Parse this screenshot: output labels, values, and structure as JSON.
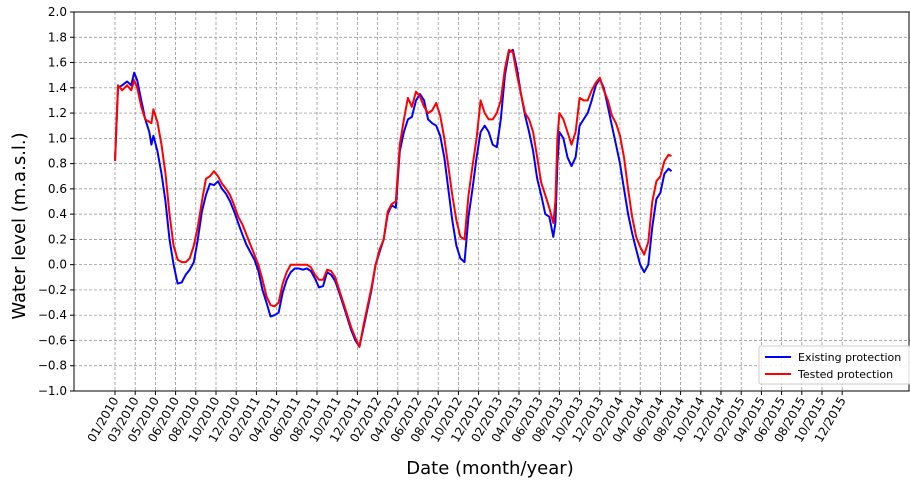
{
  "chart_data": {
    "type": "line",
    "title": "",
    "xlabel": "Date (month/year)",
    "ylabel": "Water level (m.a.s.l.)",
    "ylim": [
      -1.0,
      2.0
    ],
    "y_ticks": [
      "−1.0",
      "−0.8",
      "−0.6",
      "−0.4",
      "−0.2",
      "0.0",
      "0.2",
      "0.4",
      "0.6",
      "0.8",
      "1.0",
      "1.2",
      "1.4",
      "1.6",
      "1.8",
      "2.0"
    ],
    "x_ticks": [
      "01/2010",
      "03/2010",
      "05/2010",
      "06/2010",
      "08/2010",
      "10/2010",
      "12/2010",
      "02/2011",
      "04/2011",
      "06/2011",
      "08/2011",
      "10/2011",
      "12/2011",
      "02/2012",
      "04/2012",
      "06/2012",
      "08/2012",
      "10/2012",
      "12/2012",
      "02/2013",
      "04/2013",
      "06/2013",
      "08/2013",
      "10/2013",
      "12/2013",
      "02/2014",
      "04/2014",
      "06/2014",
      "08/2014",
      "10/2014",
      "12/2014",
      "02/2015",
      "04/2015",
      "06/2015",
      "08/2015",
      "10/2015",
      "12/2015"
    ],
    "grid": true,
    "legend_position": "bottom-right",
    "series": [
      {
        "name": "Existing protection",
        "color": "#0000ff",
        "points": [
          [
            0.0,
            0.82
          ],
          [
            0.15,
            1.4
          ],
          [
            0.35,
            1.42
          ],
          [
            0.6,
            1.45
          ],
          [
            0.8,
            1.42
          ],
          [
            0.95,
            1.52
          ],
          [
            1.1,
            1.46
          ],
          [
            1.3,
            1.3
          ],
          [
            1.5,
            1.15
          ],
          [
            1.7,
            1.05
          ],
          [
            1.8,
            0.95
          ],
          [
            1.9,
            1.02
          ],
          [
            2.1,
            0.9
          ],
          [
            2.3,
            0.72
          ],
          [
            2.5,
            0.5
          ],
          [
            2.7,
            0.2
          ],
          [
            2.9,
            0.0
          ],
          [
            3.1,
            -0.15
          ],
          [
            3.3,
            -0.14
          ],
          [
            3.5,
            -0.08
          ],
          [
            3.7,
            -0.04
          ],
          [
            3.9,
            0.02
          ],
          [
            4.1,
            0.2
          ],
          [
            4.3,
            0.42
          ],
          [
            4.5,
            0.55
          ],
          [
            4.7,
            0.64
          ],
          [
            4.9,
            0.63
          ],
          [
            5.1,
            0.66
          ],
          [
            5.3,
            0.6
          ],
          [
            5.5,
            0.56
          ],
          [
            5.7,
            0.5
          ],
          [
            5.9,
            0.42
          ],
          [
            6.1,
            0.33
          ],
          [
            6.3,
            0.24
          ],
          [
            6.5,
            0.16
          ],
          [
            6.7,
            0.1
          ],
          [
            6.9,
            0.04
          ],
          [
            7.1,
            -0.05
          ],
          [
            7.3,
            -0.2
          ],
          [
            7.5,
            -0.3
          ],
          [
            7.7,
            -0.41
          ],
          [
            7.9,
            -0.4
          ],
          [
            8.1,
            -0.38
          ],
          [
            8.3,
            -0.22
          ],
          [
            8.5,
            -0.12
          ],
          [
            8.7,
            -0.06
          ],
          [
            8.9,
            -0.03
          ],
          [
            9.1,
            -0.03
          ],
          [
            9.3,
            -0.04
          ],
          [
            9.5,
            -0.03
          ],
          [
            9.7,
            -0.05
          ],
          [
            9.9,
            -0.11
          ],
          [
            10.1,
            -0.18
          ],
          [
            10.3,
            -0.17
          ],
          [
            10.5,
            -0.06
          ],
          [
            10.7,
            -0.08
          ],
          [
            10.9,
            -0.13
          ],
          [
            11.1,
            -0.22
          ],
          [
            11.3,
            -0.32
          ],
          [
            11.5,
            -0.42
          ],
          [
            11.7,
            -0.52
          ],
          [
            11.9,
            -0.6
          ],
          [
            12.1,
            -0.65
          ],
          [
            12.3,
            -0.5
          ],
          [
            12.5,
            -0.35
          ],
          [
            12.7,
            -0.2
          ],
          [
            12.9,
            0.0
          ],
          [
            13.1,
            0.1
          ],
          [
            13.3,
            0.2
          ],
          [
            13.5,
            0.4
          ],
          [
            13.7,
            0.47
          ],
          [
            13.9,
            0.45
          ],
          [
            14.1,
            0.9
          ],
          [
            14.3,
            1.05
          ],
          [
            14.5,
            1.15
          ],
          [
            14.7,
            1.17
          ],
          [
            14.9,
            1.3
          ],
          [
            15.1,
            1.35
          ],
          [
            15.3,
            1.3
          ],
          [
            15.5,
            1.15
          ],
          [
            15.7,
            1.12
          ],
          [
            15.9,
            1.1
          ],
          [
            16.1,
            1.02
          ],
          [
            16.3,
            0.85
          ],
          [
            16.5,
            0.6
          ],
          [
            16.7,
            0.35
          ],
          [
            16.9,
            0.15
          ],
          [
            17.1,
            0.05
          ],
          [
            17.3,
            0.02
          ],
          [
            17.5,
            0.38
          ],
          [
            17.7,
            0.6
          ],
          [
            17.9,
            0.85
          ],
          [
            18.1,
            1.05
          ],
          [
            18.3,
            1.1
          ],
          [
            18.5,
            1.05
          ],
          [
            18.7,
            0.95
          ],
          [
            18.9,
            0.93
          ],
          [
            19.1,
            1.15
          ],
          [
            19.3,
            1.5
          ],
          [
            19.5,
            1.68
          ],
          [
            19.7,
            1.7
          ],
          [
            19.9,
            1.55
          ],
          [
            20.1,
            1.35
          ],
          [
            20.3,
            1.18
          ],
          [
            20.5,
            1.05
          ],
          [
            20.7,
            0.9
          ],
          [
            20.9,
            0.68
          ],
          [
            21.1,
            0.55
          ],
          [
            21.3,
            0.4
          ],
          [
            21.5,
            0.38
          ],
          [
            21.7,
            0.22
          ],
          [
            21.8,
            0.33
          ],
          [
            21.9,
            0.8
          ],
          [
            22.0,
            1.05
          ],
          [
            22.2,
            1.0
          ],
          [
            22.4,
            0.85
          ],
          [
            22.6,
            0.78
          ],
          [
            22.8,
            0.85
          ],
          [
            23.0,
            1.1
          ],
          [
            23.2,
            1.15
          ],
          [
            23.4,
            1.2
          ],
          [
            23.6,
            1.3
          ],
          [
            23.8,
            1.42
          ],
          [
            24.0,
            1.47
          ],
          [
            24.2,
            1.4
          ],
          [
            24.4,
            1.25
          ],
          [
            24.6,
            1.1
          ],
          [
            24.8,
            0.95
          ],
          [
            25.0,
            0.8
          ],
          [
            25.2,
            0.6
          ],
          [
            25.4,
            0.4
          ],
          [
            25.6,
            0.25
          ],
          [
            25.8,
            0.12
          ],
          [
            26.0,
            0.0
          ],
          [
            26.2,
            -0.06
          ],
          [
            26.4,
            0.0
          ],
          [
            26.6,
            0.3
          ],
          [
            26.8,
            0.52
          ],
          [
            27.0,
            0.57
          ],
          [
            27.2,
            0.72
          ],
          [
            27.4,
            0.76
          ],
          [
            27.55,
            0.74
          ]
        ]
      },
      {
        "name": "Tested protection",
        "color": "#ff0000",
        "points": [
          [
            0.0,
            0.82
          ],
          [
            0.15,
            1.42
          ],
          [
            0.35,
            1.38
          ],
          [
            0.6,
            1.42
          ],
          [
            0.8,
            1.38
          ],
          [
            0.95,
            1.46
          ],
          [
            1.1,
            1.4
          ],
          [
            1.3,
            1.25
          ],
          [
            1.5,
            1.15
          ],
          [
            1.7,
            1.13
          ],
          [
            1.8,
            1.12
          ],
          [
            1.9,
            1.23
          ],
          [
            2.1,
            1.13
          ],
          [
            2.3,
            0.95
          ],
          [
            2.5,
            0.72
          ],
          [
            2.7,
            0.4
          ],
          [
            2.9,
            0.15
          ],
          [
            3.1,
            0.04
          ],
          [
            3.3,
            0.02
          ],
          [
            3.5,
            0.02
          ],
          [
            3.7,
            0.05
          ],
          [
            3.9,
            0.15
          ],
          [
            4.1,
            0.3
          ],
          [
            4.3,
            0.5
          ],
          [
            4.5,
            0.68
          ],
          [
            4.7,
            0.7
          ],
          [
            4.9,
            0.74
          ],
          [
            5.1,
            0.7
          ],
          [
            5.3,
            0.64
          ],
          [
            5.5,
            0.6
          ],
          [
            5.7,
            0.55
          ],
          [
            5.9,
            0.47
          ],
          [
            6.1,
            0.38
          ],
          [
            6.3,
            0.32
          ],
          [
            6.5,
            0.24
          ],
          [
            6.7,
            0.16
          ],
          [
            6.9,
            0.08
          ],
          [
            7.1,
            0.0
          ],
          [
            7.3,
            -0.12
          ],
          [
            7.5,
            -0.25
          ],
          [
            7.7,
            -0.32
          ],
          [
            7.9,
            -0.33
          ],
          [
            8.1,
            -0.3
          ],
          [
            8.3,
            -0.15
          ],
          [
            8.5,
            -0.06
          ],
          [
            8.7,
            0.0
          ],
          [
            8.9,
            0.0
          ],
          [
            9.1,
            0.0
          ],
          [
            9.3,
            0.0
          ],
          [
            9.5,
            0.0
          ],
          [
            9.7,
            -0.02
          ],
          [
            9.9,
            -0.08
          ],
          [
            10.1,
            -0.12
          ],
          [
            10.3,
            -0.12
          ],
          [
            10.5,
            -0.04
          ],
          [
            10.7,
            -0.05
          ],
          [
            10.9,
            -0.1
          ],
          [
            11.1,
            -0.2
          ],
          [
            11.3,
            -0.3
          ],
          [
            11.5,
            -0.4
          ],
          [
            11.7,
            -0.5
          ],
          [
            11.9,
            -0.58
          ],
          [
            12.1,
            -0.65
          ],
          [
            12.3,
            -0.48
          ],
          [
            12.5,
            -0.33
          ],
          [
            12.7,
            -0.18
          ],
          [
            12.9,
            0.0
          ],
          [
            13.1,
            0.12
          ],
          [
            13.3,
            0.2
          ],
          [
            13.5,
            0.42
          ],
          [
            13.7,
            0.48
          ],
          [
            13.9,
            0.5
          ],
          [
            14.1,
            0.95
          ],
          [
            14.3,
            1.15
          ],
          [
            14.5,
            1.32
          ],
          [
            14.7,
            1.25
          ],
          [
            14.9,
            1.37
          ],
          [
            15.1,
            1.33
          ],
          [
            15.3,
            1.25
          ],
          [
            15.5,
            1.2
          ],
          [
            15.7,
            1.22
          ],
          [
            15.9,
            1.28
          ],
          [
            16.1,
            1.18
          ],
          [
            16.3,
            1.0
          ],
          [
            16.5,
            0.78
          ],
          [
            16.7,
            0.55
          ],
          [
            16.9,
            0.35
          ],
          [
            17.1,
            0.22
          ],
          [
            17.3,
            0.2
          ],
          [
            17.5,
            0.55
          ],
          [
            17.7,
            0.78
          ],
          [
            17.9,
            1.0
          ],
          [
            18.1,
            1.3
          ],
          [
            18.3,
            1.2
          ],
          [
            18.5,
            1.15
          ],
          [
            18.7,
            1.15
          ],
          [
            18.9,
            1.2
          ],
          [
            19.1,
            1.3
          ],
          [
            19.3,
            1.55
          ],
          [
            19.5,
            1.7
          ],
          [
            19.7,
            1.68
          ],
          [
            19.9,
            1.5
          ],
          [
            20.1,
            1.35
          ],
          [
            20.3,
            1.2
          ],
          [
            20.5,
            1.15
          ],
          [
            20.7,
            1.05
          ],
          [
            20.9,
            0.85
          ],
          [
            21.1,
            0.65
          ],
          [
            21.3,
            0.55
          ],
          [
            21.5,
            0.45
          ],
          [
            21.7,
            0.33
          ],
          [
            21.8,
            0.5
          ],
          [
            21.9,
            1.0
          ],
          [
            22.0,
            1.2
          ],
          [
            22.2,
            1.15
          ],
          [
            22.4,
            1.05
          ],
          [
            22.6,
            0.95
          ],
          [
            22.8,
            1.05
          ],
          [
            23.0,
            1.32
          ],
          [
            23.2,
            1.3
          ],
          [
            23.4,
            1.3
          ],
          [
            23.6,
            1.38
          ],
          [
            23.8,
            1.44
          ],
          [
            24.0,
            1.48
          ],
          [
            24.2,
            1.38
          ],
          [
            24.4,
            1.3
          ],
          [
            24.6,
            1.18
          ],
          [
            24.8,
            1.12
          ],
          [
            25.0,
            1.02
          ],
          [
            25.2,
            0.85
          ],
          [
            25.4,
            0.6
          ],
          [
            25.6,
            0.38
          ],
          [
            25.8,
            0.22
          ],
          [
            26.0,
            0.14
          ],
          [
            26.2,
            0.08
          ],
          [
            26.4,
            0.18
          ],
          [
            26.6,
            0.5
          ],
          [
            26.8,
            0.66
          ],
          [
            27.0,
            0.7
          ],
          [
            27.2,
            0.82
          ],
          [
            27.4,
            0.87
          ],
          [
            27.55,
            0.86
          ]
        ]
      }
    ]
  }
}
